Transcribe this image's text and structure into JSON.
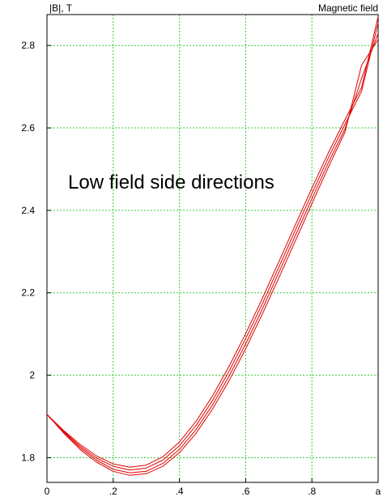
{
  "chart_data": {
    "type": "line",
    "title": "Magnetic field",
    "ylabel": "|B|, T",
    "xlabel": "",
    "annotation": "Low field side directions",
    "xlim": [
      0,
      1
    ],
    "ylim": [
      1.74,
      2.875
    ],
    "x_ticks": [
      {
        "value": 0,
        "label": "0"
      },
      {
        "value": 0.2,
        "label": ".2"
      },
      {
        "value": 0.4,
        "label": ".4"
      },
      {
        "value": 0.6,
        "label": ".6"
      },
      {
        "value": 0.8,
        "label": ".8"
      },
      {
        "value": 1.0,
        "label": "a"
      }
    ],
    "y_ticks": [
      {
        "value": 1.8,
        "label": "1.8"
      },
      {
        "value": 2.0,
        "label": "2"
      },
      {
        "value": 2.2,
        "label": "2.2"
      },
      {
        "value": 2.4,
        "label": "2.4"
      },
      {
        "value": 2.6,
        "label": "2.6"
      },
      {
        "value": 2.8,
        "label": "2.8"
      }
    ],
    "grid": true,
    "line_color": "#e00000",
    "grid_color": "#33cc33",
    "x": [
      0,
      0.05,
      0.1,
      0.15,
      0.2,
      0.25,
      0.3,
      0.35,
      0.4,
      0.45,
      0.5,
      0.55,
      0.6,
      0.65,
      0.7,
      0.75,
      0.8,
      0.85,
      0.9,
      0.95,
      1.0
    ],
    "series": [
      {
        "values": [
          1.905,
          1.866,
          1.832,
          1.804,
          1.785,
          1.777,
          1.782,
          1.802,
          1.838,
          1.888,
          1.95,
          2.022,
          2.101,
          2.186,
          2.275,
          2.365,
          2.454,
          2.54,
          2.62,
          2.698,
          2.87
        ]
      },
      {
        "values": [
          1.905,
          1.864,
          1.828,
          1.799,
          1.779,
          1.77,
          1.775,
          1.794,
          1.829,
          1.878,
          1.939,
          2.01,
          2.089,
          2.173,
          2.262,
          2.352,
          2.441,
          2.528,
          2.609,
          2.689,
          2.855
        ]
      },
      {
        "values": [
          1.905,
          1.862,
          1.824,
          1.794,
          1.772,
          1.763,
          1.767,
          1.786,
          1.82,
          1.868,
          1.928,
          1.998,
          2.076,
          2.16,
          2.249,
          2.339,
          2.428,
          2.516,
          2.598,
          2.72,
          2.83
        ]
      },
      {
        "values": [
          1.905,
          1.86,
          1.82,
          1.789,
          1.767,
          1.757,
          1.761,
          1.779,
          1.812,
          1.859,
          1.918,
          1.987,
          2.064,
          2.148,
          2.236,
          2.326,
          2.416,
          2.505,
          2.59,
          2.752,
          2.815
        ]
      }
    ]
  }
}
